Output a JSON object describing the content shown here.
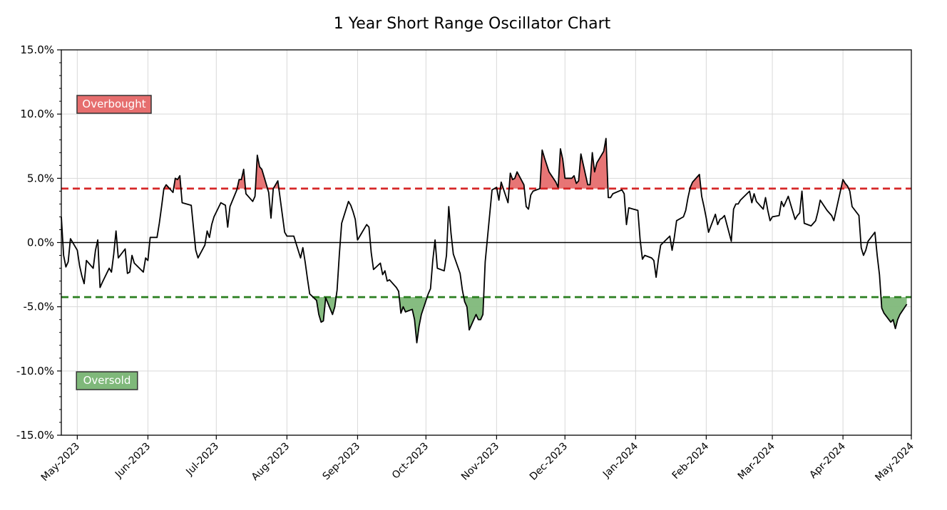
{
  "chart_data": {
    "type": "line",
    "title": "1 Year Short Range Oscillator Chart",
    "xlabel": "",
    "ylabel": "",
    "ylim": [
      -15,
      15
    ],
    "y_ticks": [
      "15.0%",
      "10.0%",
      "5.0%",
      "0.0%",
      "-5.0%",
      "-10.0%",
      "-15.0%"
    ],
    "y_tick_values": [
      15,
      10,
      5,
      0,
      -5,
      -10,
      -15
    ],
    "x_ticks": [
      "May-2023",
      "Jun-2023",
      "Jul-2023",
      "Aug-2023",
      "Sep-2023",
      "Oct-2023",
      "Nov-2023",
      "Dec-2023",
      "Jan-2024",
      "Feb-2024",
      "Mar-2024",
      "Apr-2024",
      "May-2024"
    ],
    "x_tick_dates": [
      "2023-05-01",
      "2023-06-01",
      "2023-07-01",
      "2023-08-01",
      "2023-09-01",
      "2023-10-01",
      "2023-11-01",
      "2023-12-01",
      "2024-01-01",
      "2024-02-01",
      "2024-03-01",
      "2024-04-01",
      "2024-05-01"
    ],
    "xlim": [
      "2023-04-24",
      "2024-05-01"
    ],
    "grid": true,
    "thresholds": {
      "overbought": 4.2,
      "oversold": -4.25,
      "overbought_color": "#d62728",
      "oversold_color": "#2a7f1f",
      "overbought_fill": "#e66e6e",
      "oversold_fill": "#7fb87a"
    },
    "annotations": {
      "overbought_label": "Overbought",
      "oversold_label": "Oversold"
    },
    "series": [
      {
        "line_color": "#000000",
        "points": [
          [
            "2023-04-24",
            2.0
          ],
          [
            "2023-04-25",
            -1.0
          ],
          [
            "2023-04-26",
            -1.9
          ],
          [
            "2023-04-27",
            -1.5
          ],
          [
            "2023-04-28",
            0.3
          ],
          [
            "2023-05-01",
            -0.6
          ],
          [
            "2023-05-02",
            -1.8
          ],
          [
            "2023-05-03",
            -2.6
          ],
          [
            "2023-05-04",
            -3.2
          ],
          [
            "2023-05-05",
            -1.4
          ],
          [
            "2023-05-08",
            -2.0
          ],
          [
            "2023-05-09",
            -0.6
          ],
          [
            "2023-05-10",
            0.2
          ],
          [
            "2023-05-11",
            -3.5
          ],
          [
            "2023-05-12",
            -3.1
          ],
          [
            "2023-05-15",
            -2.0
          ],
          [
            "2023-05-16",
            -2.3
          ],
          [
            "2023-05-17",
            -0.9
          ],
          [
            "2023-05-18",
            0.9
          ],
          [
            "2023-05-19",
            -1.2
          ],
          [
            "2023-05-22",
            -0.5
          ],
          [
            "2023-05-23",
            -2.4
          ],
          [
            "2023-05-24",
            -2.3
          ],
          [
            "2023-05-25",
            -1.0
          ],
          [
            "2023-05-26",
            -1.6
          ],
          [
            "2023-05-30",
            -2.3
          ],
          [
            "2023-05-31",
            -1.2
          ],
          [
            "2023-06-01",
            -1.4
          ],
          [
            "2023-06-02",
            0.4
          ],
          [
            "2023-06-05",
            0.4
          ],
          [
            "2023-06-06",
            1.5
          ],
          [
            "2023-06-07",
            2.8
          ],
          [
            "2023-06-08",
            4.2
          ],
          [
            "2023-06-09",
            4.5
          ],
          [
            "2023-06-12",
            3.9
          ],
          [
            "2023-06-13",
            5.0
          ],
          [
            "2023-06-14",
            4.9
          ],
          [
            "2023-06-15",
            5.2
          ],
          [
            "2023-06-16",
            3.1
          ],
          [
            "2023-06-20",
            2.9
          ],
          [
            "2023-06-21",
            1.1
          ],
          [
            "2023-06-22",
            -0.6
          ],
          [
            "2023-06-23",
            -1.2
          ],
          [
            "2023-06-26",
            -0.2
          ],
          [
            "2023-06-27",
            0.9
          ],
          [
            "2023-06-28",
            0.4
          ],
          [
            "2023-06-29",
            1.4
          ],
          [
            "2023-06-30",
            2.0
          ],
          [
            "2023-07-03",
            3.1
          ],
          [
            "2023-07-05",
            2.9
          ],
          [
            "2023-07-06",
            1.2
          ],
          [
            "2023-07-07",
            2.8
          ],
          [
            "2023-07-10",
            4.1
          ],
          [
            "2023-07-11",
            4.9
          ],
          [
            "2023-07-12",
            4.9
          ],
          [
            "2023-07-13",
            5.7
          ],
          [
            "2023-07-14",
            3.8
          ],
          [
            "2023-07-17",
            3.2
          ],
          [
            "2023-07-18",
            3.6
          ],
          [
            "2023-07-19",
            6.8
          ],
          [
            "2023-07-20",
            5.9
          ],
          [
            "2023-07-21",
            5.7
          ],
          [
            "2023-07-24",
            3.9
          ],
          [
            "2023-07-25",
            1.9
          ],
          [
            "2023-07-26",
            4.2
          ],
          [
            "2023-07-27",
            4.5
          ],
          [
            "2023-07-28",
            4.8
          ],
          [
            "2023-07-31",
            0.8
          ],
          [
            "2023-08-01",
            0.5
          ],
          [
            "2023-08-02",
            0.5
          ],
          [
            "2023-08-03",
            0.5
          ],
          [
            "2023-08-04",
            0.5
          ],
          [
            "2023-08-07",
            -1.2
          ],
          [
            "2023-08-08",
            -0.4
          ],
          [
            "2023-08-09",
            -1.5
          ],
          [
            "2023-08-10",
            -2.8
          ],
          [
            "2023-08-11",
            -4.0
          ],
          [
            "2023-08-14",
            -4.5
          ],
          [
            "2023-08-15",
            -5.6
          ],
          [
            "2023-08-16",
            -6.2
          ],
          [
            "2023-08-17",
            -6.1
          ],
          [
            "2023-08-18",
            -4.3
          ],
          [
            "2023-08-21",
            -5.6
          ],
          [
            "2023-08-22",
            -5.0
          ],
          [
            "2023-08-23",
            -3.7
          ],
          [
            "2023-08-24",
            -0.9
          ],
          [
            "2023-08-25",
            1.5
          ],
          [
            "2023-08-28",
            3.2
          ],
          [
            "2023-08-29",
            2.9
          ],
          [
            "2023-08-30",
            2.4
          ],
          [
            "2023-08-31",
            1.8
          ],
          [
            "2023-09-01",
            0.2
          ],
          [
            "2023-09-05",
            1.4
          ],
          [
            "2023-09-06",
            1.2
          ],
          [
            "2023-09-07",
            -0.8
          ],
          [
            "2023-09-08",
            -2.1
          ],
          [
            "2023-09-11",
            -1.6
          ],
          [
            "2023-09-12",
            -2.5
          ],
          [
            "2023-09-13",
            -2.2
          ],
          [
            "2023-09-14",
            -3.0
          ],
          [
            "2023-09-15",
            -2.9
          ],
          [
            "2023-09-18",
            -3.5
          ],
          [
            "2023-09-19",
            -3.8
          ],
          [
            "2023-09-20",
            -5.5
          ],
          [
            "2023-09-21",
            -5.0
          ],
          [
            "2023-09-22",
            -5.4
          ],
          [
            "2023-09-25",
            -5.2
          ],
          [
            "2023-09-26",
            -6.0
          ],
          [
            "2023-09-27",
            -7.8
          ],
          [
            "2023-09-28",
            -6.5
          ],
          [
            "2023-09-29",
            -5.6
          ],
          [
            "2023-10-02",
            -4.0
          ],
          [
            "2023-10-03",
            -3.6
          ],
          [
            "2023-10-04",
            -1.4
          ],
          [
            "2023-10-05",
            0.2
          ],
          [
            "2023-10-06",
            -2.0
          ],
          [
            "2023-10-09",
            -2.2
          ],
          [
            "2023-10-10",
            -1.0
          ],
          [
            "2023-10-11",
            2.8
          ],
          [
            "2023-10-12",
            0.7
          ],
          [
            "2023-10-13",
            -0.9
          ],
          [
            "2023-10-16",
            -2.4
          ],
          [
            "2023-10-17",
            -3.7
          ],
          [
            "2023-10-18",
            -4.6
          ],
          [
            "2023-10-19",
            -5.0
          ],
          [
            "2023-10-20",
            -6.8
          ],
          [
            "2023-10-23",
            -5.6
          ],
          [
            "2023-10-24",
            -6.0
          ],
          [
            "2023-10-25",
            -6.0
          ],
          [
            "2023-10-26",
            -5.6
          ],
          [
            "2023-10-27",
            -1.5
          ],
          [
            "2023-10-30",
            4.1
          ],
          [
            "2023-10-31",
            4.2
          ],
          [
            "2023-11-01",
            4.3
          ],
          [
            "2023-11-02",
            3.3
          ],
          [
            "2023-11-03",
            4.7
          ],
          [
            "2023-11-06",
            3.1
          ],
          [
            "2023-11-07",
            5.4
          ],
          [
            "2023-11-08",
            4.9
          ],
          [
            "2023-11-09",
            5.0
          ],
          [
            "2023-11-10",
            5.5
          ],
          [
            "2023-11-13",
            4.5
          ],
          [
            "2023-11-14",
            2.8
          ],
          [
            "2023-11-15",
            2.6
          ],
          [
            "2023-11-16",
            3.7
          ],
          [
            "2023-11-17",
            4.0
          ],
          [
            "2023-11-20",
            4.2
          ],
          [
            "2023-11-21",
            7.2
          ],
          [
            "2023-11-22",
            6.6
          ],
          [
            "2023-11-24",
            5.5
          ],
          [
            "2023-11-27",
            4.7
          ],
          [
            "2023-11-28",
            4.3
          ],
          [
            "2023-11-29",
            7.3
          ],
          [
            "2023-11-30",
            6.5
          ],
          [
            "2023-12-01",
            5.0
          ],
          [
            "2023-12-04",
            5.0
          ],
          [
            "2023-12-05",
            5.2
          ],
          [
            "2023-12-06",
            4.6
          ],
          [
            "2023-12-07",
            4.8
          ],
          [
            "2023-12-08",
            6.9
          ],
          [
            "2023-12-11",
            4.5
          ],
          [
            "2023-12-12",
            4.5
          ],
          [
            "2023-12-13",
            7.0
          ],
          [
            "2023-12-14",
            5.5
          ],
          [
            "2023-12-15",
            6.2
          ],
          [
            "2023-12-18",
            7.1
          ],
          [
            "2023-12-19",
            8.1
          ],
          [
            "2023-12-20",
            3.5
          ],
          [
            "2023-12-21",
            3.5
          ],
          [
            "2023-12-22",
            3.8
          ],
          [
            "2023-12-26",
            4.1
          ],
          [
            "2023-12-27",
            3.8
          ],
          [
            "2023-12-28",
            1.4
          ],
          [
            "2023-12-29",
            2.7
          ],
          [
            "2024-01-02",
            2.5
          ],
          [
            "2024-01-03",
            0.2
          ],
          [
            "2024-01-04",
            -1.3
          ],
          [
            "2024-01-05",
            -1.0
          ],
          [
            "2024-01-08",
            -1.2
          ],
          [
            "2024-01-09",
            -1.4
          ],
          [
            "2024-01-10",
            -2.7
          ],
          [
            "2024-01-11",
            -1.3
          ],
          [
            "2024-01-12",
            -0.2
          ],
          [
            "2024-01-16",
            0.5
          ],
          [
            "2024-01-17",
            -0.6
          ],
          [
            "2024-01-18",
            0.4
          ],
          [
            "2024-01-19",
            1.7
          ],
          [
            "2024-01-22",
            2.0
          ],
          [
            "2024-01-23",
            2.5
          ],
          [
            "2024-01-24",
            3.5
          ],
          [
            "2024-01-25",
            4.3
          ],
          [
            "2024-01-26",
            4.7
          ],
          [
            "2024-01-29",
            5.3
          ],
          [
            "2024-01-30",
            3.6
          ],
          [
            "2024-01-31",
            2.8
          ],
          [
            "2024-02-01",
            1.9
          ],
          [
            "2024-02-02",
            0.8
          ],
          [
            "2024-02-05",
            2.2
          ],
          [
            "2024-02-06",
            1.4
          ],
          [
            "2024-02-07",
            1.8
          ],
          [
            "2024-02-08",
            1.9
          ],
          [
            "2024-02-09",
            2.1
          ],
          [
            "2024-02-12",
            0.1
          ],
          [
            "2024-02-13",
            2.6
          ],
          [
            "2024-02-14",
            3.0
          ],
          [
            "2024-02-15",
            3.0
          ],
          [
            "2024-02-16",
            3.3
          ],
          [
            "2024-02-20",
            4.0
          ],
          [
            "2024-02-21",
            3.1
          ],
          [
            "2024-02-22",
            3.8
          ],
          [
            "2024-02-23",
            3.2
          ],
          [
            "2024-02-26",
            2.6
          ],
          [
            "2024-02-27",
            3.5
          ],
          [
            "2024-02-28",
            2.5
          ],
          [
            "2024-02-29",
            1.7
          ],
          [
            "2024-03-01",
            2.0
          ],
          [
            "2024-03-04",
            2.1
          ],
          [
            "2024-03-05",
            3.2
          ],
          [
            "2024-03-06",
            2.8
          ],
          [
            "2024-03-07",
            3.2
          ],
          [
            "2024-03-08",
            3.6
          ],
          [
            "2024-03-11",
            1.8
          ],
          [
            "2024-03-12",
            2.1
          ],
          [
            "2024-03-13",
            2.3
          ],
          [
            "2024-03-14",
            4.0
          ],
          [
            "2024-03-15",
            1.5
          ],
          [
            "2024-03-18",
            1.3
          ],
          [
            "2024-03-19",
            1.5
          ],
          [
            "2024-03-20",
            1.7
          ],
          [
            "2024-03-21",
            2.4
          ],
          [
            "2024-03-22",
            3.3
          ],
          [
            "2024-03-25",
            2.5
          ],
          [
            "2024-03-26",
            2.3
          ],
          [
            "2024-03-27",
            2.1
          ],
          [
            "2024-03-28",
            1.7
          ],
          [
            "2024-04-01",
            4.9
          ],
          [
            "2024-04-02",
            4.6
          ],
          [
            "2024-04-03",
            4.4
          ],
          [
            "2024-04-04",
            4.0
          ],
          [
            "2024-04-05",
            2.8
          ],
          [
            "2024-04-08",
            2.1
          ],
          [
            "2024-04-09",
            -0.4
          ],
          [
            "2024-04-10",
            -1.0
          ],
          [
            "2024-04-11",
            -0.6
          ],
          [
            "2024-04-12",
            0.1
          ],
          [
            "2024-04-15",
            0.8
          ],
          [
            "2024-04-16",
            -1.0
          ],
          [
            "2024-04-17",
            -2.5
          ],
          [
            "2024-04-18",
            -5.1
          ],
          [
            "2024-04-19",
            -5.5
          ],
          [
            "2024-04-22",
            -6.2
          ],
          [
            "2024-04-23",
            -6.0
          ],
          [
            "2024-04-24",
            -6.7
          ],
          [
            "2024-04-25",
            -6.0
          ],
          [
            "2024-04-26",
            -5.6
          ],
          [
            "2024-04-29",
            -4.8
          ]
        ]
      }
    ]
  }
}
